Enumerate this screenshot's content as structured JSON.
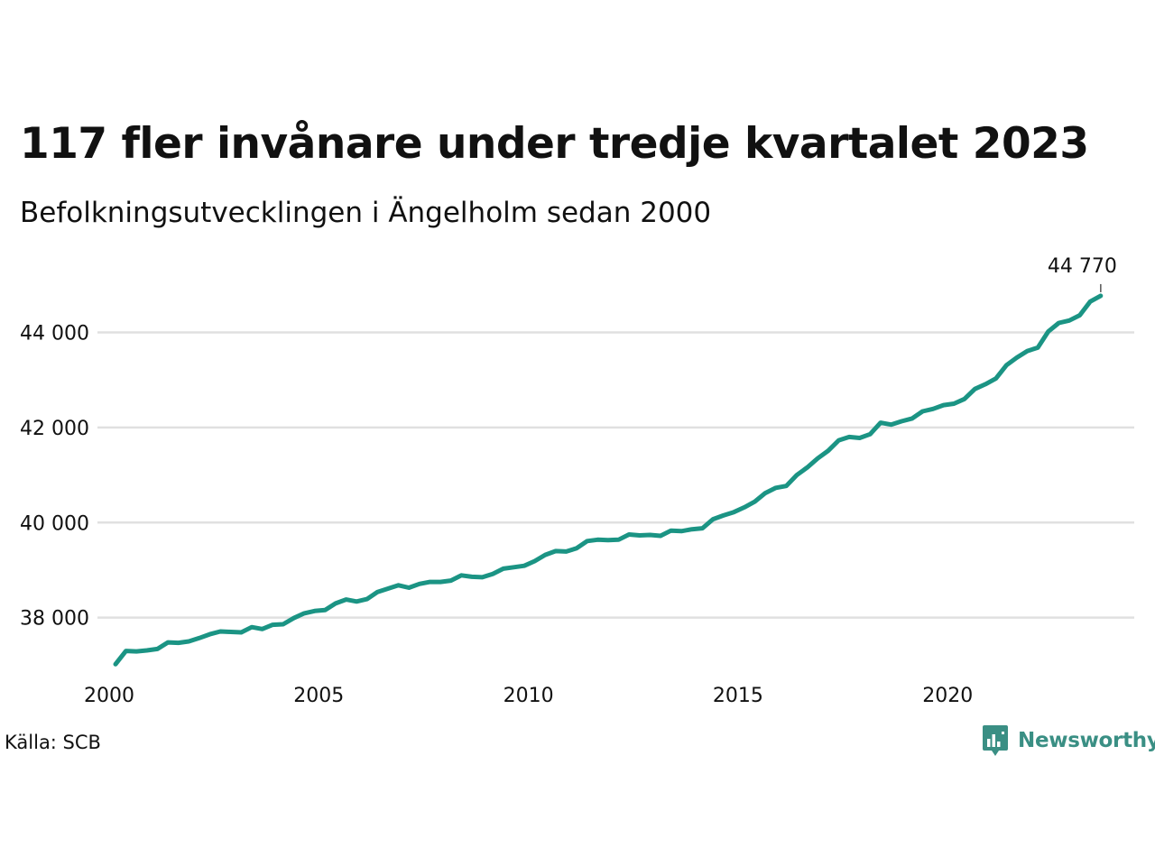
{
  "title": "117 fler invånare under tredje kvartalet 2023",
  "subtitle": "Befolkningsutvecklingen i Ängelholm sedan 2000",
  "source": "Källa: SCB",
  "brand": {
    "name": "Newsworthy",
    "icon": "newsworthy-logo-icon",
    "color": "#3a8f84"
  },
  "colors": {
    "line": "#1b9484",
    "grid": "#e0e0e0"
  },
  "chart_data": {
    "type": "line",
    "title": "117 fler invånare under tredje kvartalet 2023",
    "subtitle": "Befolkningsutvecklingen i Ängelholm sedan 2000",
    "xlabel": "",
    "ylabel": "",
    "grid": true,
    "legend": "none",
    "xlim": [
      2000.0,
      2024.3
    ],
    "ylim": [
      36950,
      45300
    ],
    "x_ticks": [
      2000,
      2005,
      2010,
      2015,
      2020
    ],
    "x_tick_labels": [
      "2000",
      "2005",
      "2010",
      "2015",
      "2020"
    ],
    "y_ticks": [
      38000,
      40000,
      42000,
      44000
    ],
    "y_tick_labels": [
      "38 000",
      "40 000",
      "42 000",
      "44 000"
    ],
    "end_label": "44 770",
    "x": [
      2000.0,
      2000.25,
      2000.5,
      2000.75,
      2001.0,
      2001.25,
      2001.5,
      2001.75,
      2002.0,
      2002.25,
      2002.5,
      2002.75,
      2003.0,
      2003.25,
      2003.5,
      2003.75,
      2004.0,
      2004.25,
      2004.5,
      2004.75,
      2005.0,
      2005.25,
      2005.5,
      2005.75,
      2006.0,
      2006.25,
      2006.5,
      2006.75,
      2007.0,
      2007.25,
      2007.5,
      2007.75,
      2008.0,
      2008.25,
      2008.5,
      2008.75,
      2009.0,
      2009.25,
      2009.5,
      2009.75,
      2010.0,
      2010.25,
      2010.5,
      2010.75,
      2011.0,
      2011.25,
      2011.5,
      2011.75,
      2012.0,
      2012.25,
      2012.5,
      2012.75,
      2013.0,
      2013.25,
      2013.5,
      2013.75,
      2014.0,
      2014.25,
      2014.5,
      2014.75,
      2015.0,
      2015.25,
      2015.5,
      2015.75,
      2016.0,
      2016.25,
      2016.5,
      2016.75,
      2017.0,
      2017.25,
      2017.5,
      2017.75,
      2018.0,
      2018.25,
      2018.5,
      2018.75,
      2019.0,
      2019.25,
      2019.5,
      2019.75,
      2020.0,
      2020.25,
      2020.5,
      2020.75,
      2021.0,
      2021.25,
      2021.5,
      2021.75,
      2022.0,
      2022.25,
      2022.5,
      2022.75,
      2023.0,
      2023.25,
      2023.5
    ],
    "series": [
      {
        "values": [
          37020,
          37300,
          37290,
          37310,
          37340,
          37480,
          37470,
          37500,
          37570,
          37650,
          37710,
          37700,
          37690,
          37800,
          37760,
          37850,
          37860,
          37990,
          38090,
          38140,
          38160,
          38300,
          38380,
          38340,
          38390,
          38540,
          38610,
          38680,
          38630,
          38710,
          38750,
          38750,
          38780,
          38890,
          38860,
          38850,
          38920,
          39030,
          39060,
          39090,
          39190,
          39320,
          39400,
          39390,
          39460,
          39610,
          39640,
          39630,
          39640,
          39750,
          39730,
          39740,
          39720,
          39830,
          39820,
          39860,
          39880,
          40070,
          40150,
          40220,
          40320,
          40440,
          40620,
          40730,
          40770,
          41000,
          41160,
          41350,
          41510,
          41730,
          41800,
          41780,
          41860,
          42100,
          42060,
          42130,
          42190,
          42340,
          42390,
          42470,
          42500,
          42600,
          42810,
          42910,
          43030,
          43310,
          43470,
          43610,
          43680,
          44020,
          44200,
          44250,
          44360,
          44650,
          44770
        ]
      }
    ]
  }
}
